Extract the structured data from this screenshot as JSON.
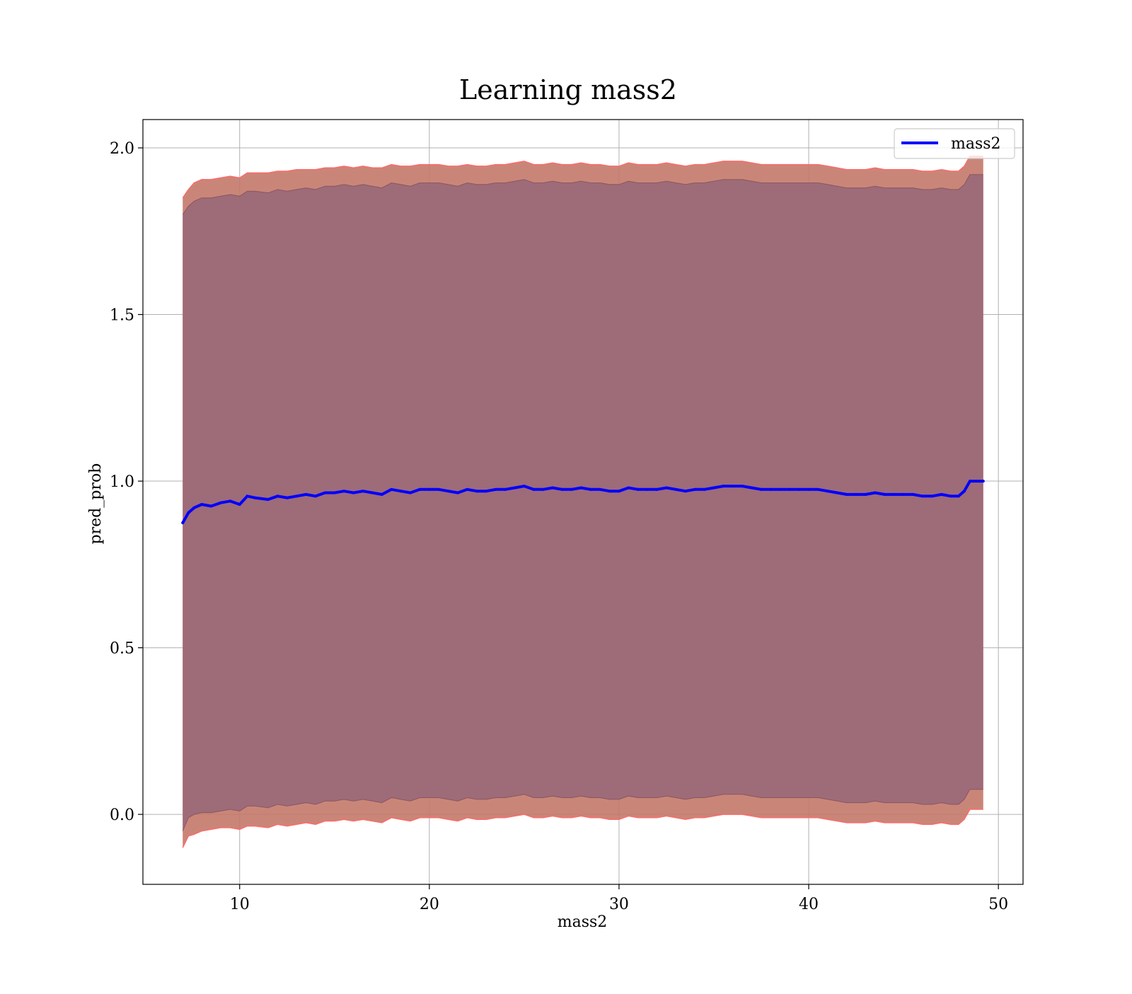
{
  "chart_data": {
    "type": "line",
    "title": "Learning mass2",
    "xlabel": "mass2",
    "ylabel": "pred_prob",
    "xlim": [
      4.9,
      51.3
    ],
    "ylim": [
      -0.21,
      2.085
    ],
    "xticks": [
      10,
      20,
      30,
      40,
      50
    ],
    "yticks": [
      0.0,
      0.5,
      1.0,
      1.5,
      2.0
    ],
    "xtick_labels": [
      "10",
      "20",
      "30",
      "40",
      50
    ],
    "ytick_labels": [
      "0.0",
      "0.5",
      "1.0",
      "1.5",
      "2.0"
    ],
    "grid": true,
    "legend": {
      "position": "top-right",
      "entries": [
        "mass2"
      ]
    },
    "colors": {
      "line": "#0000ff",
      "outer_band": "#ff0000",
      "outer_band_edge": "#ff6a6a",
      "mid_band": "#c08070",
      "inner_band": "#9e6b78",
      "inner_band_edge": "#8a5563",
      "grid": "#b0b0b0"
    },
    "x": [
      7.0,
      7.3,
      7.6,
      8.0,
      8.5,
      9.0,
      9.5,
      10.0,
      10.4,
      10.8,
      11.5,
      12.0,
      12.5,
      13.0,
      13.5,
      14.0,
      14.5,
      15.0,
      15.5,
      16.0,
      16.5,
      17.0,
      17.5,
      18.0,
      18.5,
      19.0,
      19.5,
      20.0,
      20.5,
      21.0,
      21.5,
      22.0,
      22.5,
      23.0,
      23.5,
      24.0,
      24.5,
      25.0,
      25.5,
      26.0,
      26.5,
      27.0,
      27.5,
      28.0,
      28.5,
      29.0,
      29.5,
      30.0,
      30.5,
      31.0,
      31.5,
      32.0,
      32.5,
      33.0,
      33.5,
      34.0,
      34.5,
      35.0,
      35.5,
      36.0,
      36.5,
      37.0,
      37.5,
      38.0,
      38.5,
      39.0,
      39.5,
      40.0,
      40.5,
      41.0,
      41.5,
      42.0,
      42.5,
      43.0,
      43.5,
      44.0,
      44.5,
      45.0,
      45.5,
      46.0,
      46.5,
      47.0,
      47.5,
      47.9,
      48.2,
      48.5,
      49.2
    ],
    "series": [
      {
        "name": "mass2",
        "values": [
          0.875,
          0.905,
          0.92,
          0.93,
          0.925,
          0.935,
          0.94,
          0.93,
          0.955,
          0.95,
          0.945,
          0.955,
          0.95,
          0.955,
          0.96,
          0.955,
          0.965,
          0.965,
          0.97,
          0.965,
          0.97,
          0.965,
          0.96,
          0.975,
          0.97,
          0.965,
          0.975,
          0.975,
          0.975,
          0.97,
          0.965,
          0.975,
          0.97,
          0.97,
          0.975,
          0.975,
          0.98,
          0.985,
          0.975,
          0.975,
          0.98,
          0.975,
          0.975,
          0.98,
          0.975,
          0.975,
          0.97,
          0.97,
          0.98,
          0.975,
          0.975,
          0.975,
          0.98,
          0.975,
          0.97,
          0.975,
          0.975,
          0.98,
          0.985,
          0.985,
          0.985,
          0.98,
          0.975,
          0.975,
          0.975,
          0.975,
          0.975,
          0.975,
          0.975,
          0.97,
          0.965,
          0.96,
          0.96,
          0.96,
          0.965,
          0.96,
          0.96,
          0.96,
          0.96,
          0.955,
          0.955,
          0.96,
          0.955,
          0.955,
          0.97,
          1.0,
          1.0
        ]
      }
    ],
    "bands": [
      {
        "label": "outer",
        "lower": [
          -0.1,
          -0.065,
          -0.06,
          -0.05,
          -0.045,
          -0.04,
          -0.04,
          -0.045,
          -0.035,
          -0.035,
          -0.04,
          -0.03,
          -0.035,
          -0.03,
          -0.025,
          -0.03,
          -0.02,
          -0.02,
          -0.015,
          -0.02,
          -0.015,
          -0.02,
          -0.025,
          -0.01,
          -0.015,
          -0.02,
          -0.01,
          -0.01,
          -0.01,
          -0.015,
          -0.02,
          -0.01,
          -0.015,
          -0.015,
          -0.01,
          -0.01,
          -0.005,
          0.0,
          -0.01,
          -0.01,
          -0.005,
          -0.01,
          -0.01,
          -0.005,
          -0.01,
          -0.01,
          -0.015,
          -0.015,
          -0.005,
          -0.01,
          -0.01,
          -0.01,
          -0.005,
          -0.01,
          -0.015,
          -0.01,
          -0.01,
          -0.005,
          0.0,
          0.0,
          0.0,
          -0.005,
          -0.01,
          -0.01,
          -0.01,
          -0.01,
          -0.01,
          -0.01,
          -0.01,
          -0.015,
          -0.02,
          -0.025,
          -0.025,
          -0.025,
          -0.02,
          -0.025,
          -0.025,
          -0.025,
          -0.025,
          -0.03,
          -0.03,
          -0.025,
          -0.03,
          -0.03,
          -0.015,
          0.015,
          0.015
        ],
        "upper": [
          1.85,
          1.875,
          1.895,
          1.905,
          1.905,
          1.91,
          1.915,
          1.91,
          1.925,
          1.925,
          1.925,
          1.93,
          1.93,
          1.935,
          1.935,
          1.935,
          1.94,
          1.94,
          1.945,
          1.94,
          1.945,
          1.94,
          1.94,
          1.95,
          1.945,
          1.945,
          1.95,
          1.95,
          1.95,
          1.945,
          1.945,
          1.95,
          1.945,
          1.945,
          1.95,
          1.95,
          1.955,
          1.96,
          1.95,
          1.95,
          1.955,
          1.95,
          1.95,
          1.955,
          1.95,
          1.95,
          1.945,
          1.945,
          1.955,
          1.95,
          1.95,
          1.95,
          1.955,
          1.95,
          1.945,
          1.95,
          1.95,
          1.955,
          1.96,
          1.96,
          1.96,
          1.955,
          1.95,
          1.95,
          1.95,
          1.95,
          1.95,
          1.95,
          1.95,
          1.945,
          1.94,
          1.935,
          1.935,
          1.935,
          1.94,
          1.935,
          1.935,
          1.935,
          1.935,
          1.93,
          1.93,
          1.935,
          1.93,
          1.93,
          1.945,
          1.975,
          1.975
        ]
      },
      {
        "label": "inner",
        "lower": [
          -0.05,
          -0.01,
          0.0,
          0.005,
          0.005,
          0.01,
          0.015,
          0.01,
          0.025,
          0.025,
          0.02,
          0.03,
          0.025,
          0.03,
          0.035,
          0.03,
          0.04,
          0.04,
          0.045,
          0.04,
          0.045,
          0.04,
          0.035,
          0.05,
          0.045,
          0.04,
          0.05,
          0.05,
          0.05,
          0.045,
          0.04,
          0.05,
          0.045,
          0.045,
          0.05,
          0.05,
          0.055,
          0.06,
          0.05,
          0.05,
          0.055,
          0.05,
          0.05,
          0.055,
          0.05,
          0.05,
          0.045,
          0.045,
          0.055,
          0.05,
          0.05,
          0.05,
          0.055,
          0.05,
          0.045,
          0.05,
          0.05,
          0.055,
          0.06,
          0.06,
          0.06,
          0.055,
          0.05,
          0.05,
          0.05,
          0.05,
          0.05,
          0.05,
          0.05,
          0.045,
          0.04,
          0.035,
          0.035,
          0.035,
          0.04,
          0.035,
          0.035,
          0.035,
          0.035,
          0.03,
          0.03,
          0.035,
          0.03,
          0.03,
          0.045,
          0.075,
          0.075
        ],
        "upper": [
          1.8,
          1.825,
          1.84,
          1.85,
          1.85,
          1.855,
          1.86,
          1.855,
          1.87,
          1.87,
          1.865,
          1.875,
          1.87,
          1.875,
          1.88,
          1.875,
          1.885,
          1.885,
          1.89,
          1.885,
          1.89,
          1.885,
          1.88,
          1.895,
          1.89,
          1.885,
          1.895,
          1.895,
          1.895,
          1.89,
          1.885,
          1.895,
          1.89,
          1.89,
          1.895,
          1.895,
          1.9,
          1.905,
          1.895,
          1.895,
          1.9,
          1.895,
          1.895,
          1.9,
          1.895,
          1.895,
          1.89,
          1.89,
          1.9,
          1.895,
          1.895,
          1.895,
          1.9,
          1.895,
          1.89,
          1.895,
          1.895,
          1.9,
          1.905,
          1.905,
          1.905,
          1.9,
          1.895,
          1.895,
          1.895,
          1.895,
          1.895,
          1.895,
          1.895,
          1.89,
          1.885,
          1.88,
          1.88,
          1.88,
          1.885,
          1.88,
          1.88,
          1.88,
          1.88,
          1.875,
          1.875,
          1.88,
          1.875,
          1.875,
          1.89,
          1.92,
          1.92
        ]
      }
    ]
  }
}
